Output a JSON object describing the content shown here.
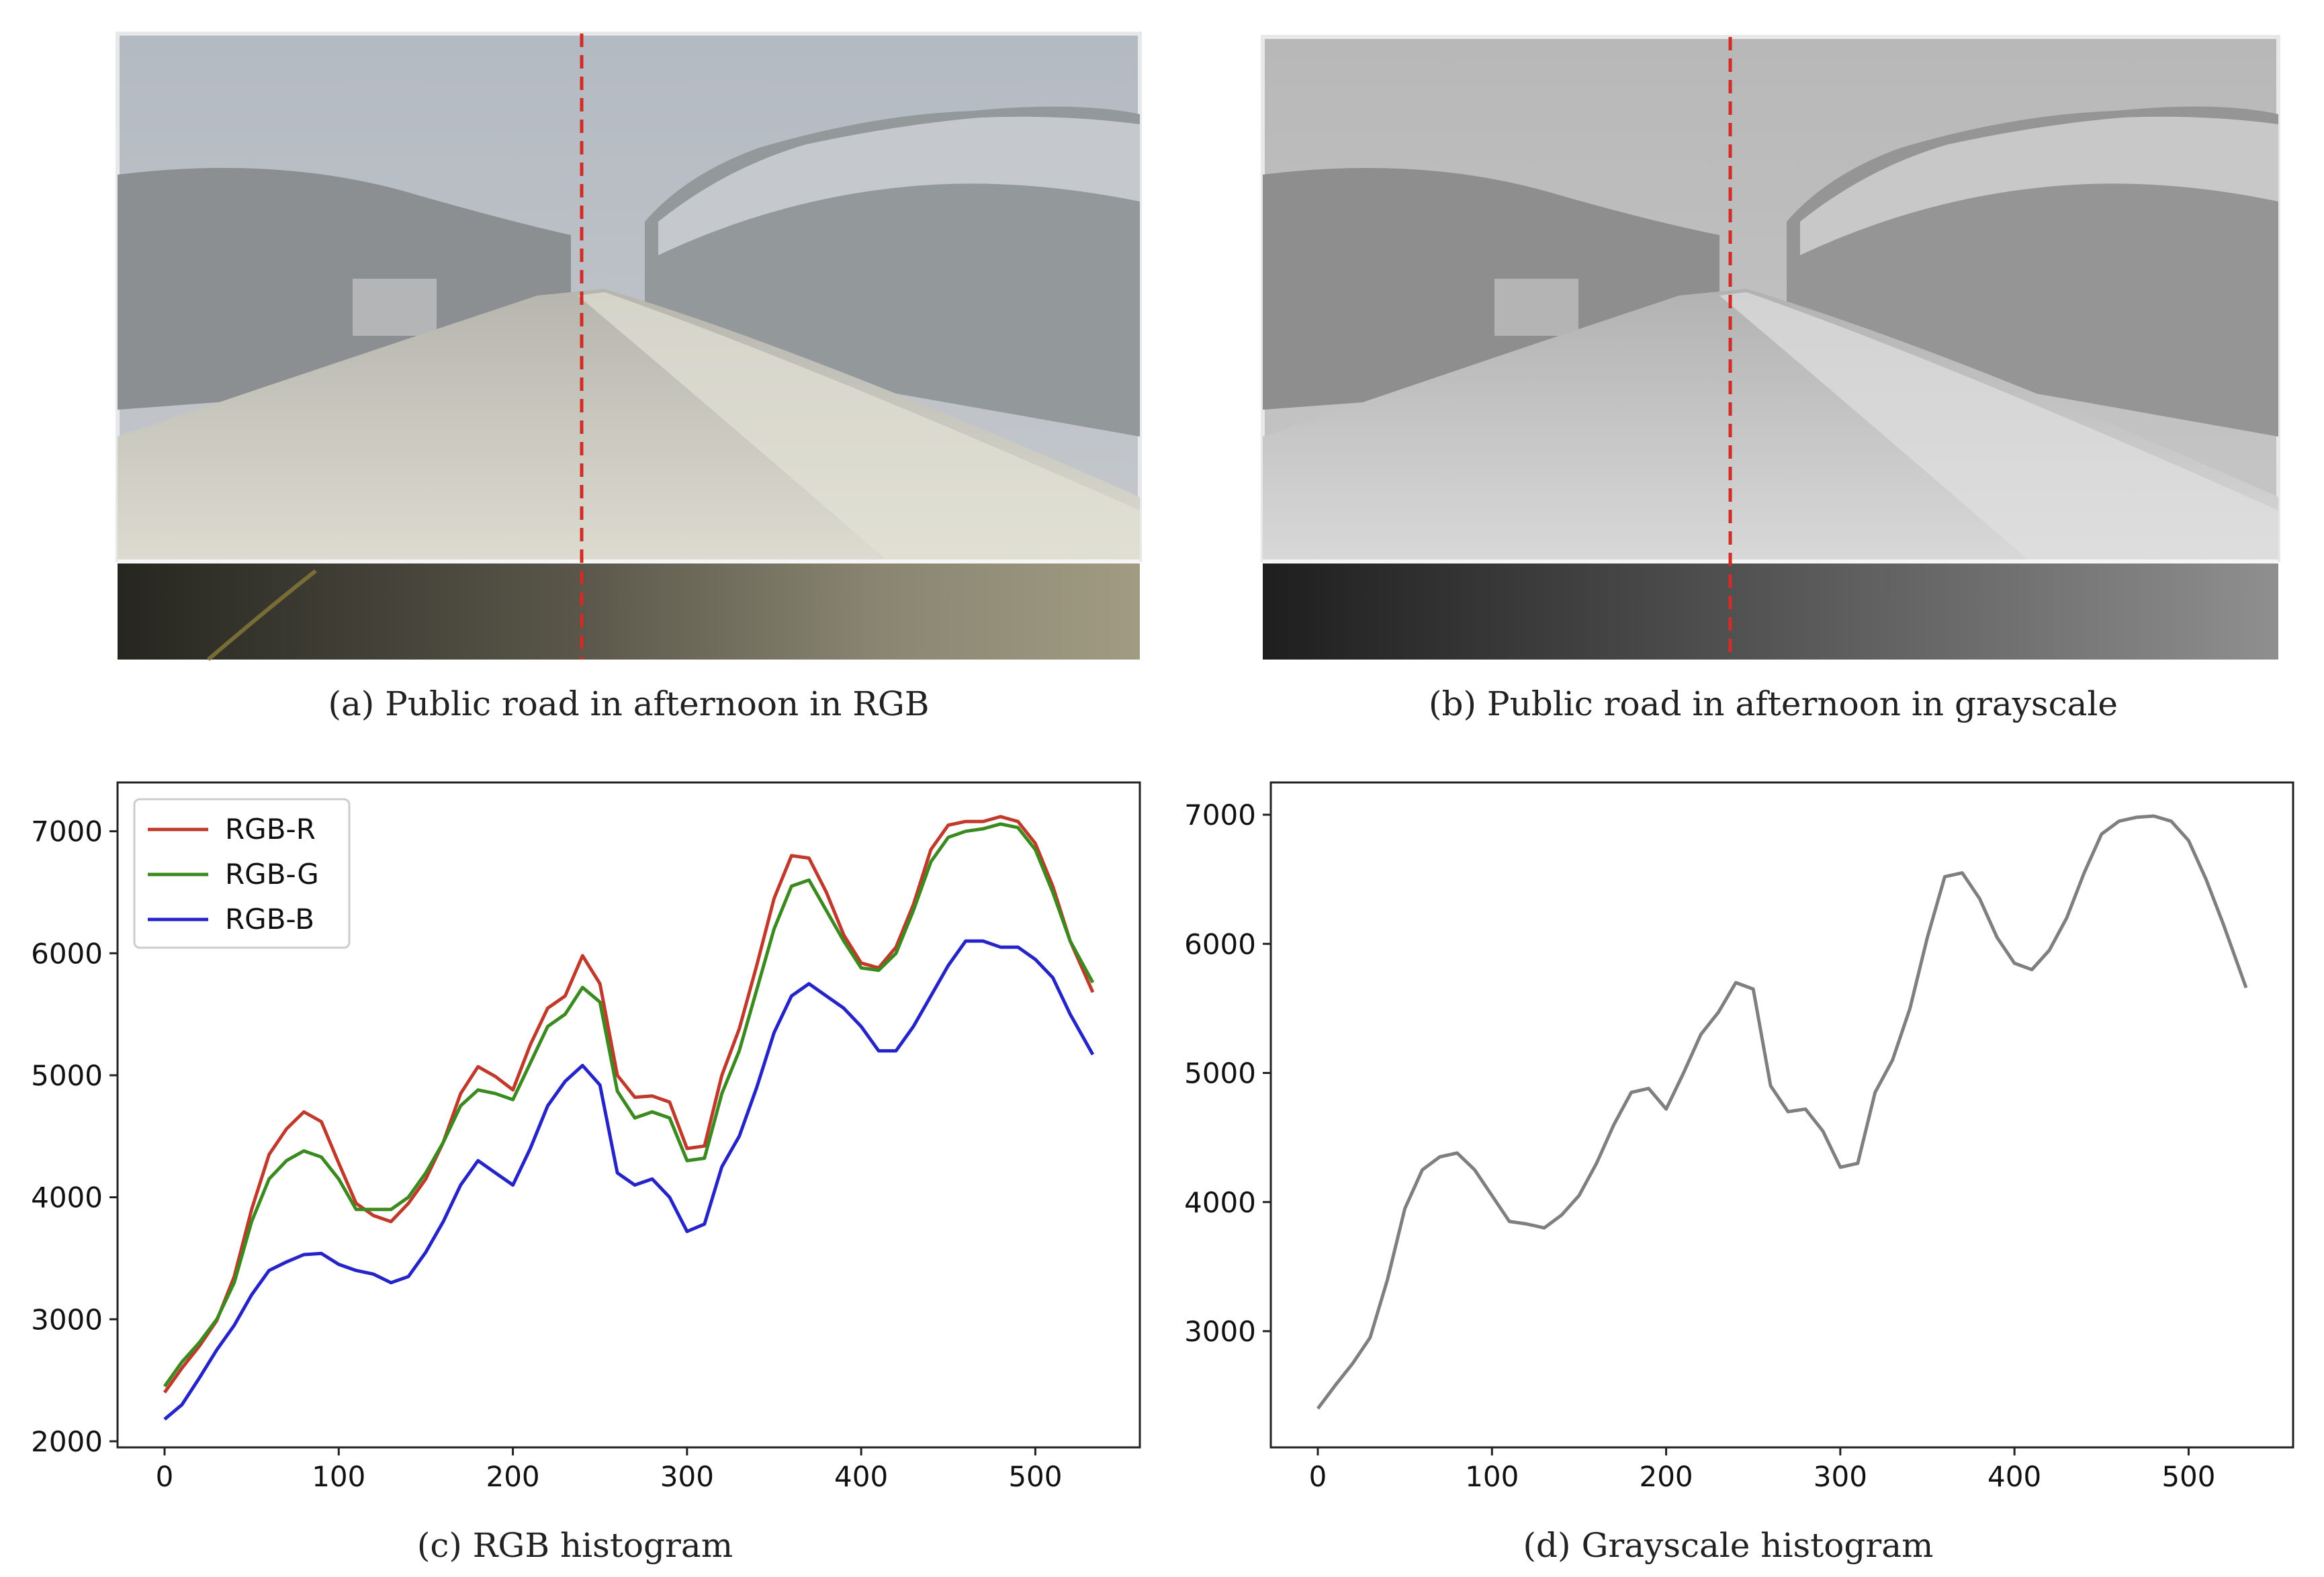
{
  "panels": {
    "a": {
      "caption": "(a) Public road in afternoon in RGB"
    },
    "b": {
      "caption": "(b) Public road in afternoon in grayscale"
    },
    "c": {
      "caption": "(c) RGB histogram"
    },
    "d": {
      "caption": "(d) Grayscale histogram"
    }
  },
  "photo_colors": {
    "sky": "#b9bfc6",
    "hill": "#8f9294",
    "road": "#c9c8be",
    "strip_dark": "#3b3a2e",
    "gray_sky": "#bdbdbd",
    "gray_strip": "#404040",
    "divider": "#d32b25"
  },
  "chart_data": [
    {
      "type": "line",
      "title": "",
      "xlabel": "",
      "ylabel": "",
      "xlim": [
        -27,
        560
      ],
      "ylim": [
        1950,
        7400
      ],
      "xticks": [
        0,
        100,
        200,
        300,
        400,
        500
      ],
      "yticks": [
        2000,
        3000,
        4000,
        5000,
        6000,
        7000
      ],
      "legend": {
        "placement": "top-left"
      },
      "x": [
        0,
        10,
        20,
        30,
        40,
        50,
        60,
        70,
        80,
        90,
        100,
        110,
        120,
        130,
        140,
        150,
        160,
        170,
        180,
        190,
        200,
        210,
        220,
        230,
        240,
        250,
        260,
        270,
        280,
        290,
        300,
        310,
        320,
        330,
        340,
        350,
        360,
        370,
        380,
        390,
        400,
        410,
        420,
        430,
        440,
        450,
        460,
        470,
        480,
        490,
        500,
        510,
        520,
        533
      ],
      "series": [
        {
          "name": "RGB-R",
          "color": "#c0392b",
          "values": [
            2400,
            2600,
            2780,
            2990,
            3350,
            3900,
            4350,
            4560,
            4700,
            4620,
            4280,
            3950,
            3850,
            3800,
            3950,
            4150,
            4450,
            4850,
            5070,
            4990,
            4880,
            5250,
            5550,
            5650,
            5980,
            5750,
            5000,
            4820,
            4830,
            4780,
            4400,
            4420,
            5000,
            5380,
            5900,
            6450,
            6800,
            6780,
            6500,
            6150,
            5920,
            5880,
            6050,
            6400,
            6850,
            7050,
            7080,
            7080,
            7120,
            7080,
            6900,
            6550,
            6100,
            5680
          ]
        },
        {
          "name": "RGB-G",
          "color": "#3a8a1f",
          "values": [
            2450,
            2650,
            2810,
            3000,
            3300,
            3800,
            4150,
            4300,
            4380,
            4330,
            4150,
            3900,
            3900,
            3900,
            4000,
            4200,
            4450,
            4750,
            4880,
            4850,
            4800,
            5100,
            5400,
            5500,
            5720,
            5600,
            4870,
            4650,
            4700,
            4650,
            4300,
            4320,
            4850,
            5200,
            5700,
            6200,
            6550,
            6600,
            6350,
            6100,
            5880,
            5860,
            6000,
            6350,
            6750,
            6950,
            7000,
            7020,
            7060,
            7030,
            6850,
            6500,
            6100,
            5760
          ]
        },
        {
          "name": "RGB-B",
          "color": "#2424c8",
          "values": [
            2180,
            2300,
            2520,
            2750,
            2950,
            3200,
            3400,
            3470,
            3530,
            3540,
            3450,
            3400,
            3370,
            3300,
            3350,
            3550,
            3800,
            4100,
            4300,
            4200,
            4100,
            4400,
            4750,
            4950,
            5080,
            4920,
            4200,
            4100,
            4150,
            4000,
            3720,
            3780,
            4250,
            4500,
            4900,
            5350,
            5650,
            5750,
            5650,
            5550,
            5400,
            5200,
            5200,
            5400,
            5650,
            5900,
            6100,
            6100,
            6050,
            6050,
            5950,
            5800,
            5500,
            5170
          ]
        }
      ]
    },
    {
      "type": "line",
      "title": "",
      "xlabel": "",
      "ylabel": "",
      "xlim": [
        -27,
        560
      ],
      "ylim": [
        2100,
        7250
      ],
      "xticks": [
        0,
        100,
        200,
        300,
        400,
        500
      ],
      "yticks": [
        3000,
        4000,
        5000,
        6000,
        7000
      ],
      "x": [
        0,
        10,
        20,
        30,
        40,
        50,
        60,
        70,
        80,
        90,
        100,
        110,
        120,
        130,
        140,
        150,
        160,
        170,
        180,
        190,
        200,
        210,
        220,
        230,
        240,
        250,
        260,
        270,
        280,
        290,
        300,
        310,
        320,
        330,
        340,
        350,
        360,
        370,
        380,
        390,
        400,
        410,
        420,
        430,
        440,
        450,
        460,
        470,
        480,
        490,
        500,
        510,
        520,
        533
      ],
      "series": [
        {
          "name": "",
          "color": "#7f7f7f",
          "values": [
            2400,
            2580,
            2750,
            2950,
            3400,
            3950,
            4250,
            4350,
            4380,
            4250,
            4050,
            3850,
            3830,
            3800,
            3900,
            4050,
            4300,
            4600,
            4850,
            4880,
            4720,
            5000,
            5300,
            5470,
            5700,
            5650,
            4900,
            4700,
            4720,
            4550,
            4270,
            4300,
            4850,
            5100,
            5500,
            6050,
            6520,
            6550,
            6350,
            6050,
            5850,
            5800,
            5950,
            6200,
            6550,
            6850,
            6950,
            6980,
            6990,
            6950,
            6800,
            6500,
            6150,
            5660
          ]
        }
      ]
    }
  ]
}
